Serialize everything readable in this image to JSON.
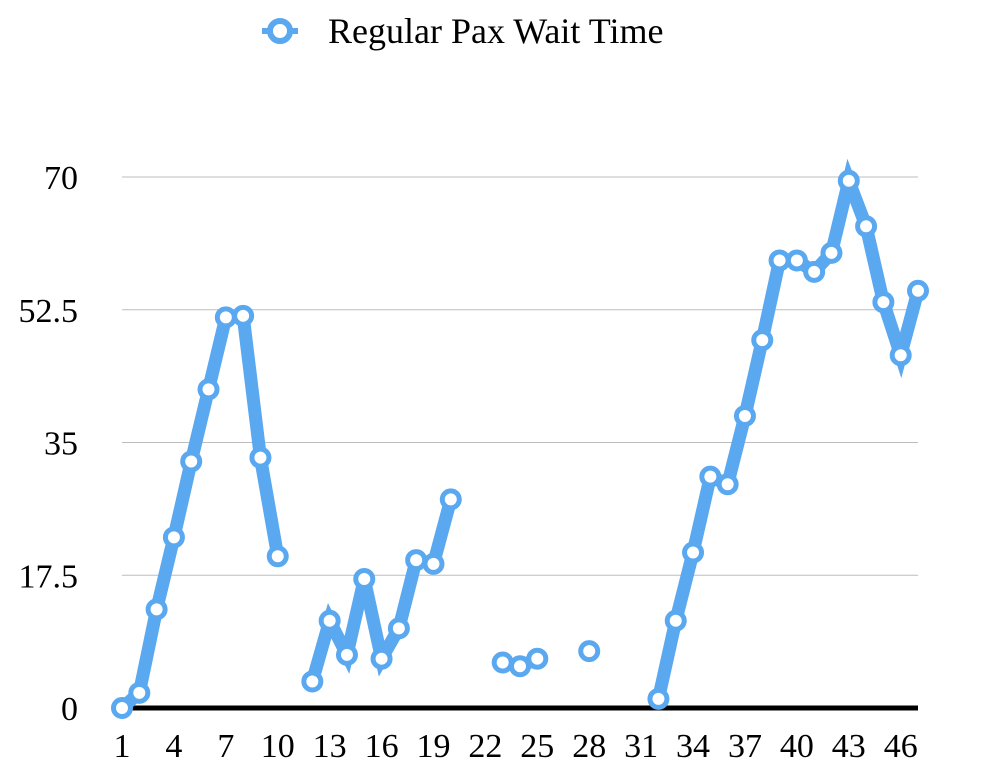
{
  "chart_data": {
    "type": "line",
    "legend": {
      "position": "top-center",
      "entries": [
        "Regular Pax Wait Time"
      ]
    },
    "x_ticks": [
      "1",
      "4",
      "7",
      "10",
      "13",
      "16",
      "19",
      "22",
      "25",
      "28",
      "31",
      "34",
      "37",
      "40",
      "43",
      "46"
    ],
    "y_ticks": [
      "0",
      "17.5",
      "35",
      "52.5",
      "70"
    ],
    "ylim": [
      0,
      70
    ],
    "xlim": [
      1,
      47
    ],
    "grid": true,
    "series": [
      {
        "name": "Regular Pax Wait Time",
        "color": "#5aa8f0",
        "x": [
          1,
          2,
          3,
          4,
          5,
          6,
          7,
          8,
          9,
          10,
          11,
          12,
          13,
          14,
          15,
          16,
          17,
          18,
          19,
          20,
          21,
          22,
          23,
          24,
          25,
          26,
          27,
          28,
          29,
          30,
          31,
          32,
          33,
          34,
          35,
          36,
          37,
          38,
          39,
          40,
          41,
          42,
          43,
          44,
          45,
          46,
          47
        ],
        "values": [
          0,
          2,
          13,
          22.5,
          32.5,
          42,
          51.5,
          51.7,
          33,
          20,
          null,
          3.5,
          11.5,
          7,
          17,
          6.5,
          10.5,
          19.5,
          19,
          27.5,
          null,
          null,
          6,
          5.5,
          6.5,
          null,
          null,
          7.5,
          null,
          null,
          null,
          1.2,
          11.5,
          20.5,
          30.5,
          29.5,
          38.5,
          48.5,
          59,
          59,
          57.5,
          60,
          69.5,
          63.5,
          53.5,
          46.5,
          55
        ]
      }
    ]
  }
}
